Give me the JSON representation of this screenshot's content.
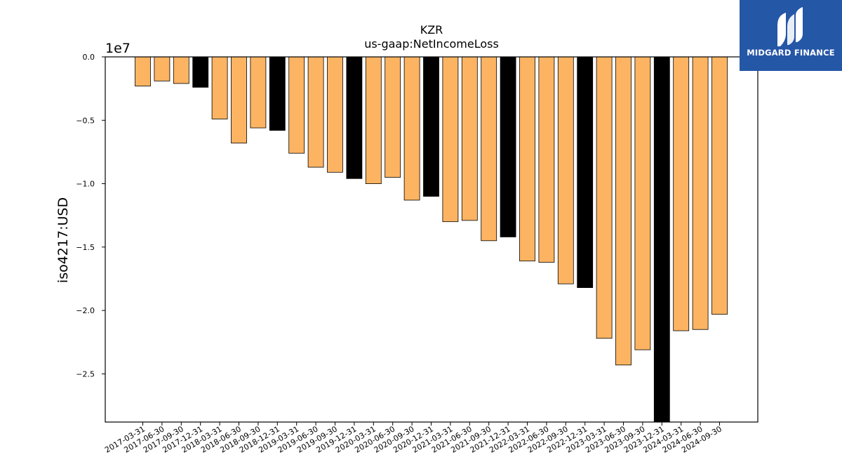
{
  "logo": {
    "text": "MIDGARD FINANCE"
  },
  "chart_data": {
    "type": "bar",
    "title": "KZR",
    "subtitle": "us-gaap:NetIncomeLoss",
    "ylabel": "iso4217:USD",
    "offset_label": "1e7",
    "xlabel": "",
    "ylim": [
      -28800000,
      0
    ],
    "yticks": [
      0,
      -5000000,
      -10000000,
      -15000000,
      -20000000,
      -25000000
    ],
    "ytick_labels": [
      "0.0",
      "−0.5",
      "−1.0",
      "−1.5",
      "−2.0",
      "−2.5"
    ],
    "grid": false,
    "colors": {
      "quarterly": "#fdb462",
      "annual": "#000000",
      "edge": "#000000"
    },
    "categories": [
      "2017-03-31",
      "2017-06-30",
      "2017-09-30",
      "2017-12-31",
      "2018-03-31",
      "2018-06-30",
      "2018-09-30",
      "2018-12-31",
      "2019-03-31",
      "2019-06-30",
      "2019-09-30",
      "2019-12-31",
      "2020-03-31",
      "2020-06-30",
      "2020-09-30",
      "2020-12-31",
      "2021-03-31",
      "2021-06-30",
      "2021-09-30",
      "2021-12-31",
      "2022-03-31",
      "2022-06-30",
      "2022-09-30",
      "2022-12-31",
      "2023-03-31",
      "2023-06-30",
      "2023-09-30",
      "2023-12-31",
      "2024-03-31",
      "2024-06-30",
      "2024-09-30"
    ],
    "values": [
      -2300000,
      -1900000,
      -2100000,
      -2400000,
      -4900000,
      -6800000,
      -5600000,
      -5800000,
      -7600000,
      -8700000,
      -9100000,
      -9600000,
      -10000000,
      -9500000,
      -11300000,
      -11000000,
      -13000000,
      -12900000,
      -14500000,
      -14200000,
      -16100000,
      -16200000,
      -17900000,
      -18200000,
      -22200000,
      -24300000,
      -23100000,
      -28800000,
      -21600000,
      -21500000,
      -20300000
    ],
    "annual_flags": [
      false,
      false,
      false,
      true,
      false,
      false,
      false,
      true,
      false,
      false,
      false,
      true,
      false,
      false,
      false,
      true,
      false,
      false,
      false,
      true,
      false,
      false,
      false,
      true,
      false,
      false,
      false,
      true,
      false,
      false,
      false
    ]
  }
}
